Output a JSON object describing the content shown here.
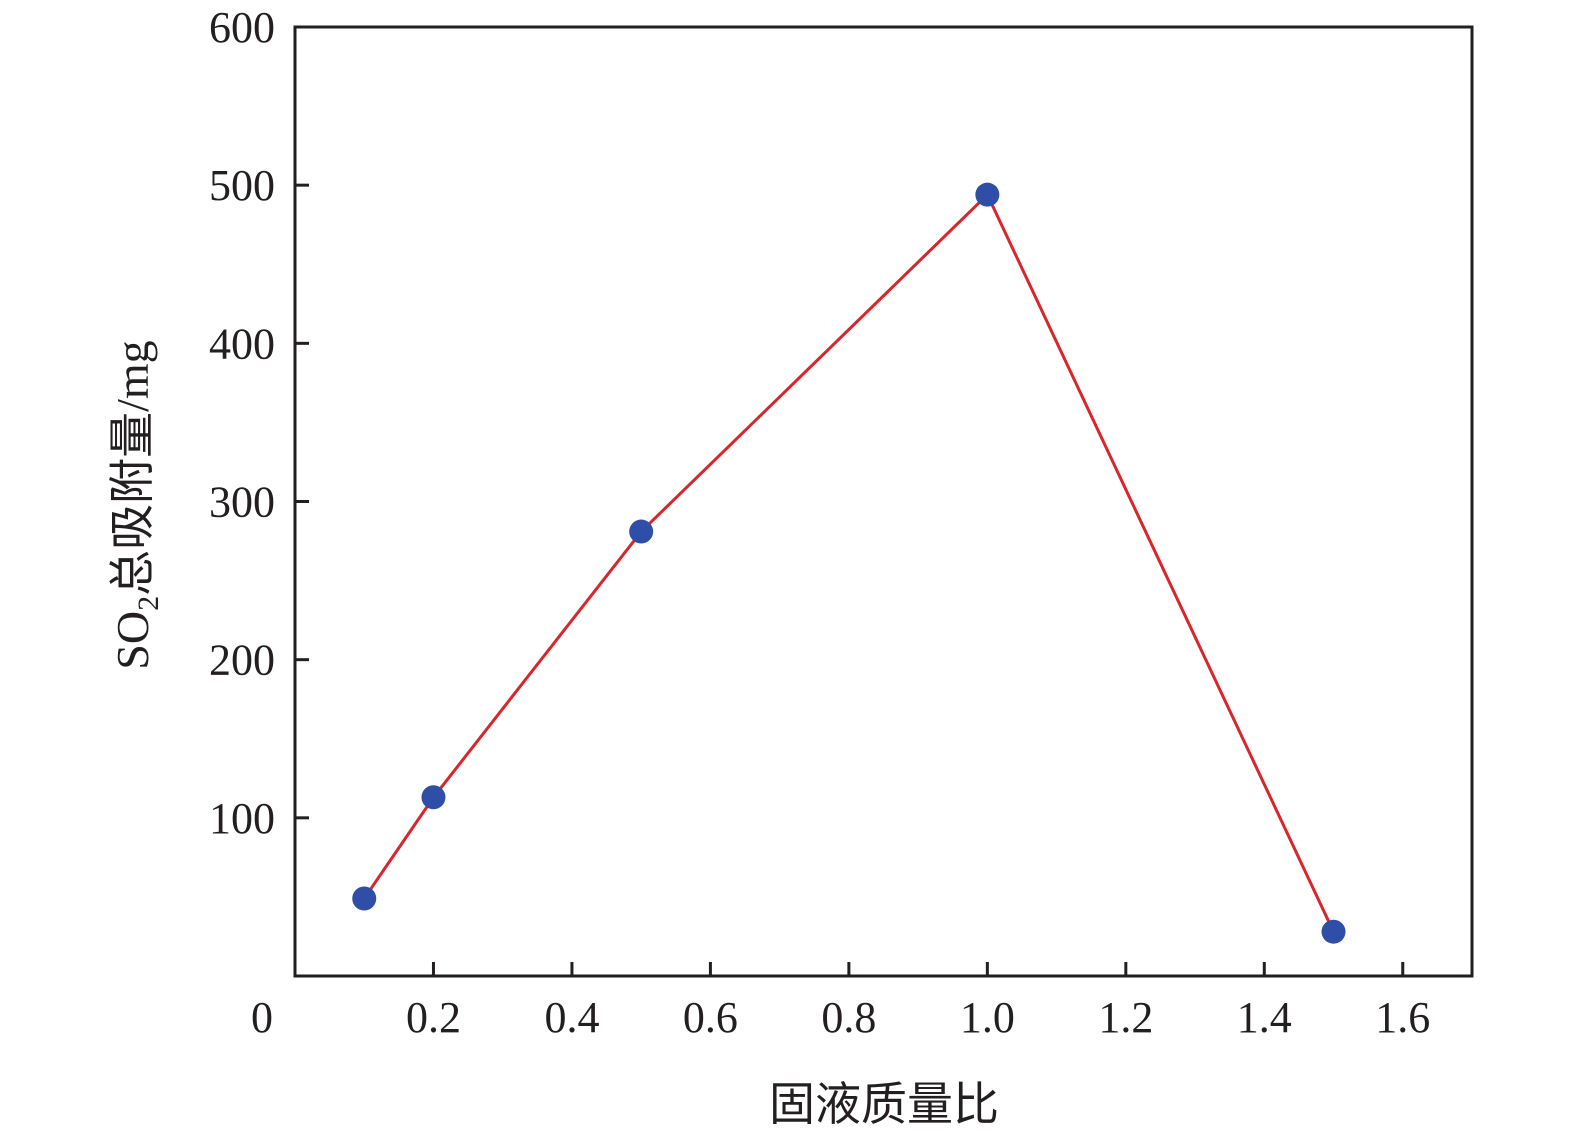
{
  "chart_data": {
    "type": "line",
    "xlabel": "固液质量比",
    "ylabel": {
      "main": "SO",
      "subscript": "2",
      "rest": "总吸附量/mg"
    },
    "x_origin_label": "0",
    "xlim": [
      0,
      1.7
    ],
    "ylim": [
      0,
      600
    ],
    "x_ticks": [
      0.2,
      0.4,
      0.6,
      0.8,
      1.0,
      1.2,
      1.4,
      1.6
    ],
    "x_tick_labels": [
      "0.2",
      "0.4",
      "0.6",
      "0.8",
      "1.0",
      "1.2",
      "1.4",
      "1.6"
    ],
    "y_ticks": [
      100,
      200,
      300,
      400,
      500,
      600
    ],
    "y_tick_labels": [
      "100",
      "200",
      "300",
      "400",
      "500",
      "600"
    ],
    "grid": false,
    "series": [
      {
        "x": [
          0.1,
          0.2,
          0.5,
          1.0,
          1.5
        ],
        "y": [
          49,
          113,
          281,
          494,
          28
        ],
        "line_color": "#d7262c",
        "marker_color": "#2f4ea8"
      }
    ]
  }
}
